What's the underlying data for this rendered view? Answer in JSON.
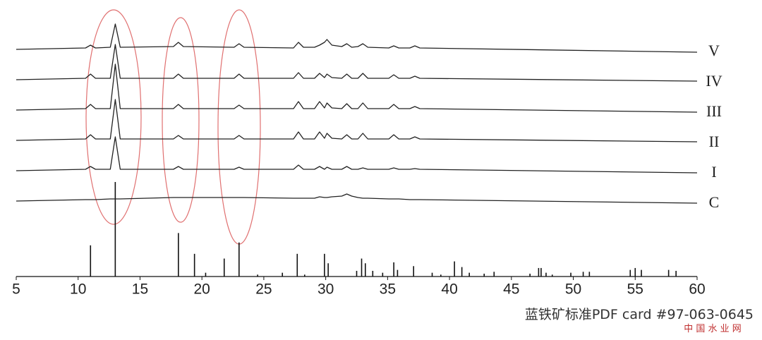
{
  "chart_data": {
    "type": "line",
    "x": [
      5,
      10.6,
      11.0,
      11.4,
      12.6,
      13.0,
      13.4,
      17.7,
      18.1,
      18.5,
      22.6,
      23.0,
      23.4,
      27.4,
      27.8,
      28.2,
      29.1,
      29.5,
      29.9,
      30.1,
      30.5,
      31.3,
      31.7,
      32.1,
      32.6,
      33.0,
      33.4,
      35.1,
      35.5,
      35.9,
      36.8,
      37.2,
      37.6,
      60
    ],
    "series": [
      {
        "name": "V",
        "color": "#222222",
        "values": [
          0,
          2,
          6,
          2,
          3,
          36,
          3,
          4,
          10,
          4,
          3,
          8,
          3,
          2,
          10,
          3,
          3,
          6,
          10,
          14,
          6,
          4,
          8,
          3,
          4,
          8,
          3,
          2,
          5,
          2,
          2,
          5,
          2,
          -4
        ]
      },
      {
        "name": "IV",
        "color": "#222222",
        "values": [
          0,
          2,
          8,
          2,
          2,
          50,
          2,
          2,
          8,
          2,
          2,
          8,
          2,
          2,
          10,
          2,
          2,
          9,
          3,
          8,
          3,
          2,
          8,
          2,
          2,
          9,
          2,
          2,
          7,
          2,
          2,
          5,
          2,
          -2
        ]
      },
      {
        "name": "III",
        "color": "#222222",
        "values": [
          0,
          2,
          8,
          2,
          2,
          65,
          2,
          2,
          8,
          2,
          2,
          7,
          2,
          2,
          12,
          2,
          2,
          12,
          3,
          10,
          3,
          2,
          9,
          2,
          2,
          10,
          2,
          2,
          8,
          2,
          2,
          5,
          2,
          -3
        ]
      },
      {
        "name": "II",
        "color": "#222222",
        "values": [
          0,
          2,
          8,
          2,
          2,
          58,
          2,
          2,
          7,
          2,
          2,
          7,
          2,
          2,
          12,
          2,
          2,
          12,
          3,
          10,
          3,
          2,
          8,
          2,
          2,
          10,
          2,
          2,
          8,
          2,
          2,
          5,
          2,
          -2
        ]
      },
      {
        "name": "I",
        "color": "#222222",
        "values": [
          0,
          2,
          6,
          2,
          2,
          48,
          2,
          2,
          6,
          2,
          2,
          5,
          2,
          2,
          8,
          2,
          2,
          6,
          2,
          5,
          2,
          2,
          6,
          2,
          2,
          4,
          2,
          2,
          4,
          2,
          2,
          3,
          2,
          -3
        ]
      },
      {
        "name": "C",
        "color": "#222222",
        "values": [
          0,
          2,
          2,
          2,
          3,
          3,
          3,
          5,
          5,
          5,
          5,
          5,
          5,
          4,
          4,
          4,
          4,
          6,
          5,
          5,
          6,
          7,
          10,
          7,
          5,
          4,
          4,
          3,
          3,
          3,
          2,
          2,
          2,
          -3
        ]
      }
    ],
    "reference": {
      "x": [
        11.0,
        13.0,
        18.1,
        19.4,
        20.3,
        21.8,
        23.0,
        24.5,
        26.5,
        27.7,
        28.3,
        29.9,
        30.2,
        32.5,
        32.9,
        33.2,
        33.8,
        34.6,
        35.5,
        35.8,
        37.1,
        38.6,
        39.3,
        40.4,
        41.0,
        41.6,
        42.8,
        43.6,
        46.5,
        47.2,
        47.4,
        47.8,
        48.3,
        49.8,
        50.8,
        51.3,
        54.6,
        55.0,
        55.5,
        57.7,
        58.3
      ],
      "values": [
        33,
        100,
        46,
        24,
        4,
        19,
        36,
        2,
        4,
        24,
        2,
        24,
        14,
        6,
        19,
        14,
        6,
        4,
        15,
        7,
        11,
        4,
        2,
        16,
        10,
        4,
        3,
        5,
        3,
        9,
        9,
        4,
        2,
        4,
        5,
        5,
        7,
        9,
        7,
        7,
        6
      ],
      "color": "#111111"
    },
    "xlim": [
      5,
      60
    ],
    "xticks": [
      5,
      10,
      15,
      20,
      25,
      30,
      35,
      40,
      45,
      50,
      55,
      60
    ],
    "caption": "蓝铁矿标准PDF card #97-063-0645",
    "watermark": "中 国 水 业 网"
  }
}
